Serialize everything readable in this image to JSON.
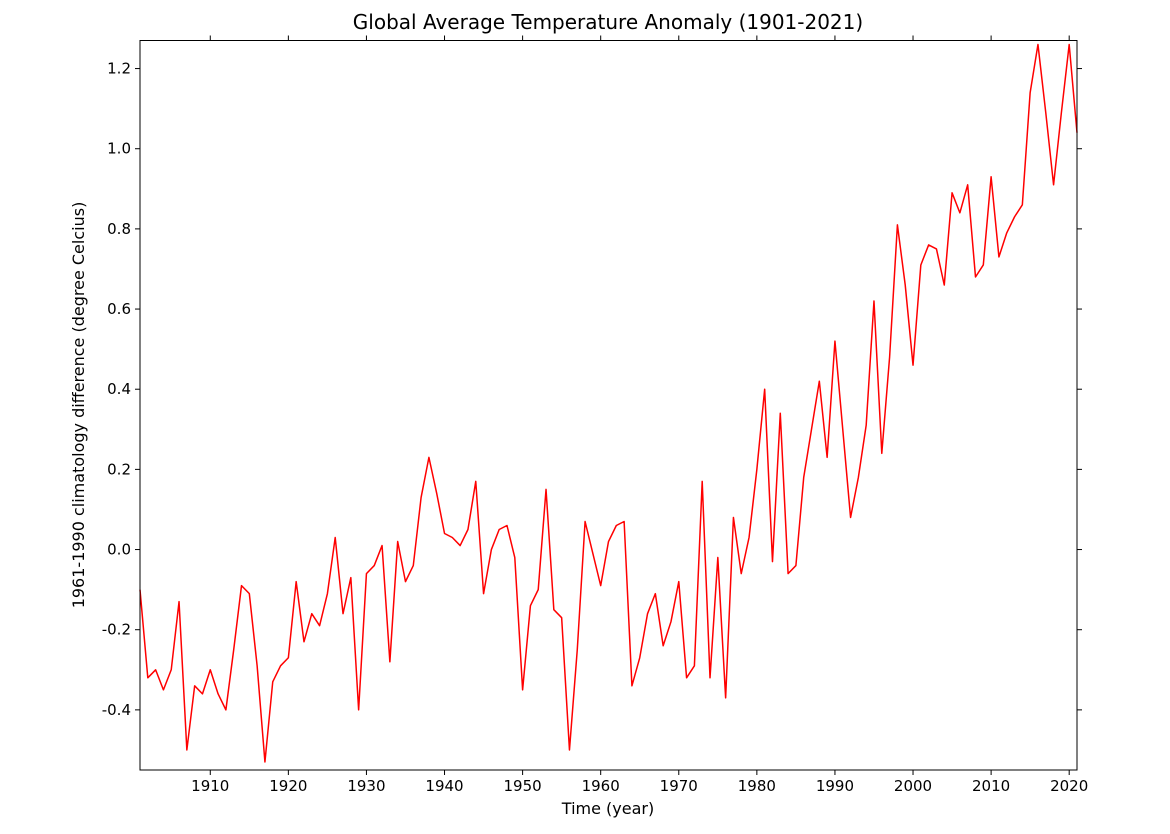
{
  "figure": {
    "background": "#ffffff",
    "text_color": "#000000",
    "spine_color": "#000000"
  },
  "chart_data": {
    "type": "line",
    "title": "Global Average Temperature Anomaly (1901-2021)",
    "xlabel": "Time (year)",
    "ylabel": "1961-1990 climatology difference (degree Celcius)",
    "grid": false,
    "legend": null,
    "xlim": [
      1901,
      2021
    ],
    "ylim": [
      -0.55,
      1.27
    ],
    "xticks": [
      1910,
      1920,
      1930,
      1940,
      1950,
      1960,
      1970,
      1980,
      1990,
      2000,
      2010,
      2020
    ],
    "xtick_labels": [
      "1910",
      "1920",
      "1930",
      "1940",
      "1950",
      "1960",
      "1970",
      "1980",
      "1990",
      "2000",
      "2010",
      "2020"
    ],
    "yticks": [
      -0.4,
      -0.2,
      0.0,
      0.2,
      0.4,
      0.6,
      0.8,
      1.0,
      1.2
    ],
    "ytick_labels": [
      "-0.4",
      "-0.2",
      "0.0",
      "0.2",
      "0.4",
      "0.6",
      "0.8",
      "1.0",
      "1.2"
    ],
    "x": [
      1901,
      1902,
      1903,
      1904,
      1905,
      1906,
      1907,
      1908,
      1909,
      1910,
      1911,
      1912,
      1913,
      1914,
      1915,
      1916,
      1917,
      1918,
      1919,
      1920,
      1921,
      1922,
      1923,
      1924,
      1925,
      1926,
      1927,
      1928,
      1929,
      1930,
      1931,
      1932,
      1933,
      1934,
      1935,
      1936,
      1937,
      1938,
      1939,
      1940,
      1941,
      1942,
      1943,
      1944,
      1945,
      1946,
      1947,
      1948,
      1949,
      1950,
      1951,
      1952,
      1953,
      1954,
      1955,
      1956,
      1957,
      1958,
      1959,
      1960,
      1961,
      1962,
      1963,
      1964,
      1965,
      1966,
      1967,
      1968,
      1969,
      1970,
      1971,
      1972,
      1973,
      1974,
      1975,
      1976,
      1977,
      1978,
      1979,
      1980,
      1981,
      1982,
      1983,
      1984,
      1985,
      1986,
      1987,
      1988,
      1989,
      1990,
      1991,
      1992,
      1993,
      1994,
      1995,
      1996,
      1997,
      1998,
      1999,
      2000,
      2001,
      2002,
      2003,
      2004,
      2005,
      2006,
      2007,
      2008,
      2009,
      2010,
      2011,
      2012,
      2013,
      2014,
      2015,
      2016,
      2017,
      2018,
      2019,
      2020,
      2021
    ],
    "series": [
      {
        "name": "temperature anomaly",
        "color": "#ff0000",
        "line_width": 1.5,
        "values": [
          -0.1,
          -0.32,
          -0.3,
          -0.35,
          -0.3,
          -0.13,
          -0.5,
          -0.34,
          -0.36,
          -0.3,
          -0.36,
          -0.4,
          -0.25,
          -0.09,
          -0.11,
          -0.29,
          -0.53,
          -0.33,
          -0.29,
          -0.27,
          -0.08,
          -0.23,
          -0.16,
          -0.19,
          -0.11,
          0.03,
          -0.16,
          -0.07,
          -0.4,
          -0.06,
          -0.04,
          0.01,
          -0.28,
          0.02,
          -0.08,
          -0.04,
          0.13,
          0.23,
          0.14,
          0.04,
          0.03,
          0.01,
          0.05,
          0.17,
          -0.11,
          0.0,
          0.05,
          0.06,
          -0.02,
          -0.35,
          -0.14,
          -0.1,
          0.15,
          -0.15,
          -0.17,
          -0.5,
          -0.25,
          0.07,
          -0.01,
          -0.09,
          0.02,
          0.06,
          0.07,
          -0.34,
          -0.27,
          -0.16,
          -0.11,
          -0.24,
          -0.18,
          -0.08,
          -0.32,
          -0.29,
          0.17,
          -0.32,
          -0.02,
          -0.37,
          0.08,
          -0.06,
          0.03,
          0.2,
          0.4,
          -0.03,
          0.34,
          -0.06,
          -0.04,
          0.18,
          0.3,
          0.42,
          0.23,
          0.52,
          0.3,
          0.08,
          0.18,
          0.31,
          0.62,
          0.24,
          0.48,
          0.81,
          0.66,
          0.46,
          0.71,
          0.76,
          0.75,
          0.66,
          0.89,
          0.84,
          0.91,
          0.68,
          0.71,
          0.93,
          0.73,
          0.79,
          0.83,
          0.86,
          1.14,
          1.26,
          1.09,
          0.91,
          1.09,
          1.26,
          1.04
        ]
      }
    ]
  }
}
